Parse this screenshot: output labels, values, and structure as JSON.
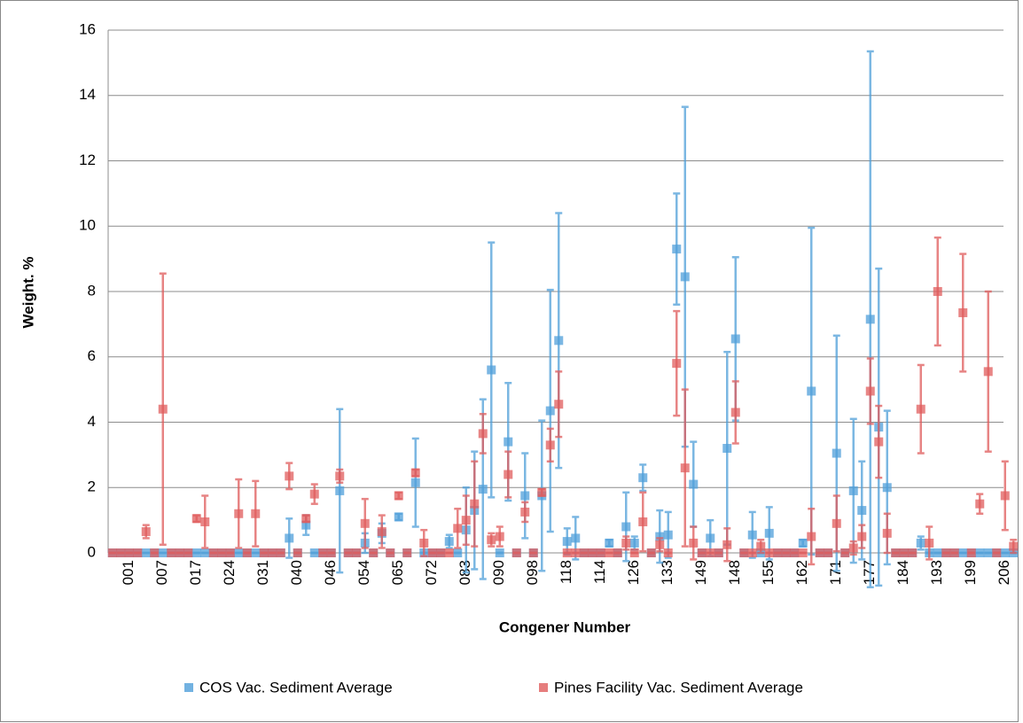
{
  "chart_data": {
    "type": "errorbar",
    "x_label": "Congener Number",
    "y_label": "Weight. %",
    "categories": [
      null,
      null,
      "001",
      null,
      null,
      null,
      "007",
      null,
      null,
      null,
      "017",
      null,
      null,
      null,
      "024",
      null,
      null,
      null,
      "031",
      null,
      null,
      null,
      "040",
      null,
      null,
      null,
      "046",
      null,
      null,
      null,
      "054",
      null,
      null,
      null,
      "065",
      null,
      null,
      null,
      "072",
      null,
      null,
      null,
      "083",
      null,
      null,
      null,
      "090",
      null,
      null,
      null,
      "098",
      null,
      null,
      null,
      "118",
      null,
      null,
      null,
      "114",
      null,
      null,
      null,
      "126",
      null,
      null,
      null,
      "133",
      null,
      null,
      null,
      "149",
      null,
      null,
      null,
      "148",
      null,
      null,
      null,
      "155",
      null,
      null,
      null,
      "162",
      null,
      null,
      null,
      "171",
      null,
      null,
      null,
      "177",
      null,
      null,
      null,
      "184",
      null,
      null,
      null,
      "193",
      null,
      null,
      null,
      "199",
      null,
      null,
      null,
      "206",
      null
    ],
    "ylim": [
      0,
      16
    ],
    "yticks": [
      0,
      2,
      4,
      6,
      8,
      10,
      12,
      14,
      16
    ],
    "grid": true,
    "series": [
      {
        "name": "COS Vac. Sediment Average",
        "color": "#4f9fd9",
        "values": [
          0,
          0,
          0,
          0,
          0,
          0,
          0,
          0,
          0,
          0,
          0,
          0,
          0,
          0,
          0,
          0,
          0,
          0,
          0,
          0,
          0,
          0.45,
          0,
          0.85,
          0,
          0,
          0,
          1.9,
          0,
          0,
          0.3,
          0,
          0.6,
          0,
          1.1,
          0,
          2.15,
          0,
          0,
          0,
          0.35,
          0,
          0.7,
          1.3,
          1.95,
          5.6,
          0,
          3.4,
          0,
          1.75,
          0,
          1.75,
          4.35,
          6.5,
          0.35,
          0.45,
          0,
          0,
          0,
          0.3,
          0,
          0.8,
          0.3,
          2.3,
          0,
          0.5,
          0.55,
          9.3,
          8.45,
          2.1,
          0,
          0.45,
          0,
          3.2,
          6.55,
          0,
          0.55,
          0,
          0.6,
          0,
          0,
          0,
          0.3,
          4.95,
          0,
          0,
          3.05,
          0,
          1.9,
          1.3,
          7.15,
          3.85,
          2.0,
          0,
          0,
          0,
          0.3,
          0,
          0,
          0,
          0,
          0,
          0,
          0,
          0,
          0,
          0,
          0
        ],
        "errors": [
          0,
          0,
          0,
          0,
          0,
          0,
          0,
          0,
          0,
          0,
          0,
          0,
          0,
          0,
          0,
          0,
          0,
          0,
          0,
          0,
          0,
          0.6,
          0,
          0.3,
          0,
          0,
          0,
          2.5,
          0,
          0,
          0.3,
          0,
          0.3,
          0,
          0.1,
          0,
          1.35,
          0,
          0,
          0,
          0.2,
          0,
          1.3,
          1.8,
          2.75,
          3.9,
          0,
          1.8,
          0,
          1.3,
          0,
          2.3,
          3.7,
          3.9,
          0.4,
          0.65,
          0,
          0,
          0,
          0.1,
          0,
          1.05,
          0.2,
          0.4,
          0,
          0.8,
          0.7,
          1.7,
          5.2,
          1.3,
          0,
          0.55,
          0,
          2.95,
          2.5,
          0,
          0.7,
          0,
          0.8,
          0,
          0,
          0,
          0.1,
          5.0,
          0,
          0,
          3.6,
          0,
          2.2,
          1.5,
          8.2,
          4.85,
          2.35,
          0,
          0,
          0,
          0.2,
          0,
          0,
          0,
          0,
          0,
          0,
          0,
          0,
          0,
          0,
          0
        ]
      },
      {
        "name": "Pines Facility Vac. Sediment Average",
        "color": "#e05c5c",
        "values": [
          0,
          0,
          0,
          0,
          0.65,
          0,
          4.4,
          0,
          0,
          0,
          1.05,
          0.95,
          0,
          0,
          0,
          1.2,
          0,
          1.2,
          0,
          0,
          0,
          2.35,
          0,
          1.05,
          1.8,
          0,
          0,
          2.35,
          0,
          0,
          0.9,
          0,
          0.65,
          0,
          1.75,
          0,
          2.45,
          0.3,
          0,
          0,
          0,
          0.75,
          1.0,
          1.5,
          3.65,
          0.4,
          0.5,
          2.4,
          0,
          1.25,
          0,
          1.85,
          3.3,
          4.55,
          0,
          0,
          0,
          0,
          0,
          0,
          0,
          0.3,
          0,
          0.95,
          0,
          0.25,
          0,
          5.8,
          2.6,
          0.3,
          0,
          0,
          0,
          0.25,
          4.3,
          0,
          0,
          0.2,
          0,
          0,
          0,
          0,
          0,
          0.5,
          0,
          0,
          0.9,
          0,
          0.15,
          0.5,
          4.95,
          3.4,
          0.6,
          0,
          0,
          0,
          4.4,
          0.3,
          8.0,
          0,
          0,
          7.35,
          0,
          1.5,
          5.55,
          0,
          1.75,
          0.2
        ],
        "errors": [
          0,
          0,
          0,
          0,
          0.2,
          0,
          4.15,
          0,
          0,
          0,
          0.1,
          0.8,
          0,
          0,
          0,
          1.05,
          0,
          1.0,
          0,
          0,
          0,
          0.4,
          0,
          0.1,
          0.3,
          0,
          0,
          0.2,
          0,
          0,
          0.75,
          0,
          0.5,
          0,
          0.1,
          0,
          0.1,
          0.4,
          0,
          0,
          0,
          0.6,
          0.75,
          1.3,
          0.6,
          0.2,
          0.3,
          0.7,
          0,
          0.3,
          0,
          0.1,
          0.5,
          1.0,
          0,
          0,
          0,
          0,
          0,
          0,
          0,
          0.2,
          0,
          0.9,
          0,
          0.2,
          0,
          1.6,
          2.4,
          0.5,
          0,
          0,
          0,
          0.5,
          0.95,
          0,
          0,
          0.2,
          0,
          0,
          0,
          0,
          0,
          0.85,
          0,
          0,
          0.85,
          0,
          0.2,
          0.35,
          1.0,
          1.1,
          0.6,
          0,
          0,
          0,
          1.35,
          0.5,
          1.65,
          0,
          0,
          1.8,
          0,
          0.3,
          2.45,
          0,
          1.05,
          0.2
        ]
      }
    ]
  }
}
